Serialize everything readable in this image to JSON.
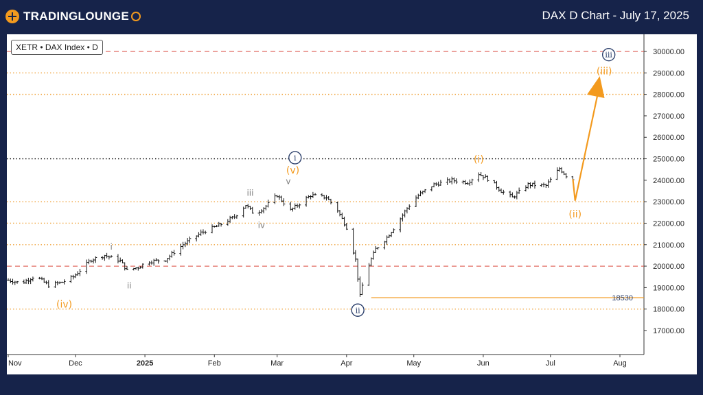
{
  "header": {
    "logo_text": "TRADINGLOUNGE",
    "title": "DAX D Chart - July 17, 2025"
  },
  "symbol_label": "XETR • DAX Index • D",
  "colors": {
    "background": "#16234a",
    "accent": "#f39a1e",
    "navy_label": "#2b3f6b",
    "gray_label": "#808080",
    "orange_dotted": "#f0a33c",
    "red_dashed": "#d9463b",
    "black_dotted": "#000000",
    "candle": "#111111"
  },
  "chart_data": {
    "type": "candlestick",
    "title": "DAX D Chart - July 17, 2025",
    "symbol": "XETR • DAX Index • D",
    "x_tick_labels": [
      "Nov",
      "Dec",
      "2025",
      "Feb",
      "Mar",
      "Apr",
      "May",
      "Jun",
      "Jul",
      "Aug"
    ],
    "x_tick_days": [
      0,
      30,
      61,
      92,
      120,
      151,
      181,
      212,
      242,
      273
    ],
    "y_tick_labels": [
      "30000.00",
      "29000.00",
      "28000.00",
      "27000.00",
      "26000.00",
      "25000.00",
      "24000.00",
      "23000.00",
      "22000.00",
      "21000.00",
      "20000.00",
      "19000.00",
      "18000.00",
      "17000.00"
    ],
    "ylim": [
      16000,
      31000
    ],
    "xlim": [
      0,
      283
    ],
    "horizontal_levels": [
      {
        "value": 30000,
        "style": "red-dashed"
      },
      {
        "value": 29000,
        "style": "orange-dotted"
      },
      {
        "value": 28000,
        "style": "orange-dotted"
      },
      {
        "value": 25000,
        "style": "black-dotted"
      },
      {
        "value": 23000,
        "style": "orange-dotted"
      },
      {
        "value": 22000,
        "style": "orange-dotted"
      },
      {
        "value": 21000,
        "style": "orange-dotted"
      },
      {
        "value": 20000,
        "style": "red-dashed"
      },
      {
        "value": 18000,
        "style": "orange-dotted"
      }
    ],
    "support_line": {
      "value": 18530,
      "label": "18530",
      "day_start": 162
    },
    "price_anchors": [
      [
        0,
        19350
      ],
      [
        6,
        19200
      ],
      [
        12,
        19550
      ],
      [
        18,
        19100
      ],
      [
        24,
        19250
      ],
      [
        29,
        19500
      ],
      [
        33,
        19900
      ],
      [
        37,
        20300
      ],
      [
        43,
        20500
      ],
      [
        50,
        20250
      ],
      [
        53,
        19800
      ],
      [
        58,
        19950
      ],
      [
        62,
        20200
      ],
      [
        70,
        20300
      ],
      [
        78,
        21000
      ],
      [
        86,
        21550
      ],
      [
        94,
        21900
      ],
      [
        101,
        22300
      ],
      [
        106,
        22850
      ],
      [
        110,
        22400
      ],
      [
        115,
        22800
      ],
      [
        120,
        23300
      ],
      [
        126,
        22600
      ],
      [
        135,
        23300
      ],
      [
        142,
        23200
      ],
      [
        147,
        22600
      ],
      [
        151,
        21800
      ],
      [
        155,
        20300
      ],
      [
        157,
        18600
      ],
      [
        159,
        19600
      ],
      [
        164,
        20800
      ],
      [
        168,
        21200
      ],
      [
        173,
        21900
      ],
      [
        178,
        22700
      ],
      [
        183,
        23300
      ],
      [
        190,
        23800
      ],
      [
        198,
        24000
      ],
      [
        205,
        23900
      ],
      [
        210,
        24300
      ],
      [
        215,
        24000
      ],
      [
        220,
        23500
      ],
      [
        225,
        23200
      ],
      [
        232,
        23800
      ],
      [
        240,
        23750
      ],
      [
        246,
        24550
      ],
      [
        250,
        24100
      ],
      [
        252,
        24050
      ]
    ],
    "projection": [
      {
        "day": 252,
        "value": 24050
      },
      {
        "day": 253,
        "value": 23050
      },
      {
        "day": 264,
        "value": 28850
      }
    ],
    "wave_labels": [
      {
        "text": "ⓘ",
        "day": 128,
        "value": 25050,
        "color": "navy",
        "circled": true
      },
      {
        "text": "(v)",
        "day": 127,
        "value": 24450,
        "color": "orange"
      },
      {
        "text": "v",
        "day": 125,
        "value": 23950,
        "color": "gray"
      },
      {
        "text": "iii",
        "day": 108,
        "value": 23400,
        "color": "gray"
      },
      {
        "text": "iv",
        "day": 113,
        "value": 21900,
        "color": "gray"
      },
      {
        "text": "i",
        "day": 46,
        "value": 20900,
        "color": "gray"
      },
      {
        "text": "ii",
        "day": 54,
        "value": 19100,
        "color": "gray"
      },
      {
        "text": "(iv)",
        "day": 25,
        "value": 18200,
        "color": "orange"
      },
      {
        "text": "ⓘⓘ",
        "day": 156,
        "value": 17950,
        "color": "navy",
        "circled": true
      },
      {
        "text": "(i)",
        "day": 210,
        "value": 24950,
        "color": "orange"
      },
      {
        "text": "(ii)",
        "day": 253,
        "value": 22400,
        "color": "orange"
      },
      {
        "text": "(iii)",
        "day": 266,
        "value": 29050,
        "color": "orange"
      },
      {
        "text": "ⓘⓘⓘ",
        "day": 268,
        "value": 29850,
        "color": "navy",
        "circled": true
      }
    ],
    "wave_texts": [
      "i",
      "(v)",
      "v",
      "iii",
      "iv",
      "i",
      "ii",
      "(iv)",
      "ii",
      "(i)",
      "(ii)",
      "(iii)",
      "iii"
    ]
  }
}
